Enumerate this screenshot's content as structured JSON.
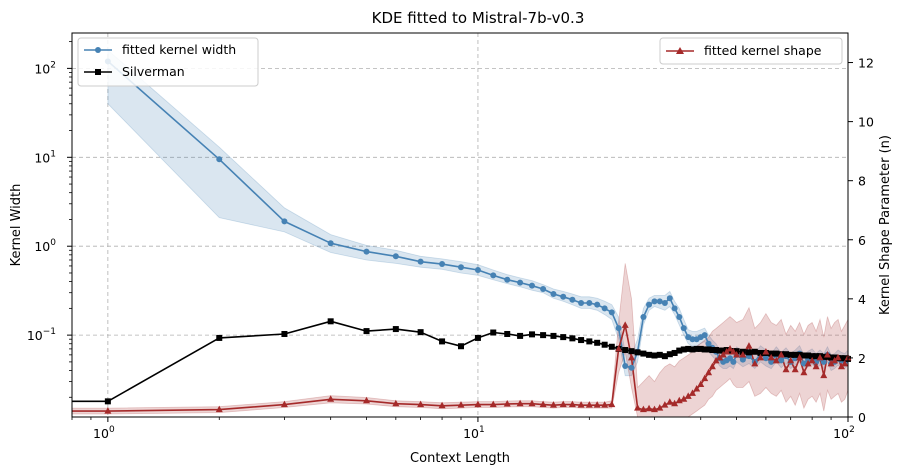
{
  "chart_data": {
    "type": "line",
    "title": "KDE fitted to Mistral-7b-v0.3",
    "xlabel": "Context Length",
    "ylabel_left": "Kernel Width",
    "ylabel_right": "Kernel Shape Parameter (n)",
    "x_scale": "log",
    "y_left_scale": "log",
    "xlim": [
      0.8,
      100
    ],
    "ylim_left": [
      0.012,
      250
    ],
    "ylim_right": [
      0,
      13
    ],
    "x_ticks": [
      {
        "value": 1,
        "base": "10",
        "exp": "0"
      },
      {
        "value": 10,
        "base": "10",
        "exp": "1"
      },
      {
        "value": 100,
        "base": "10",
        "exp": "2"
      }
    ],
    "y_left_ticks": [
      {
        "value": 0.1,
        "base": "10",
        "exp": "−1"
      },
      {
        "value": 1,
        "base": "10",
        "exp": "0"
      },
      {
        "value": 10,
        "base": "10",
        "exp": "1"
      },
      {
        "value": 100,
        "base": "10",
        "exp": "2"
      }
    ],
    "y_right_ticks": [
      "0",
      "2",
      "4",
      "6",
      "8",
      "10",
      "12"
    ],
    "grid": true,
    "legend_left": [
      "fitted kernel width",
      "Silverman"
    ],
    "legend_right": [
      "fitted kernel shape"
    ],
    "colors": {
      "width": "#4682b4",
      "silverman": "#000000",
      "shape": "#a52a2a"
    },
    "series": [
      {
        "name": "fitted kernel width",
        "axis": "left",
        "x": [
          1,
          2,
          3,
          4,
          5,
          6,
          7,
          8,
          9,
          10,
          11,
          12,
          13,
          14,
          15,
          16,
          17,
          18,
          19,
          20,
          21,
          22,
          23,
          24,
          25,
          26,
          27,
          28,
          29,
          30,
          31,
          32,
          33,
          34,
          35,
          36,
          37,
          38,
          39,
          40,
          41,
          42,
          43,
          44,
          45,
          46,
          47,
          48,
          49,
          50,
          52,
          54,
          56,
          58,
          60,
          62,
          64,
          66,
          68,
          70,
          72,
          74,
          76,
          78,
          80,
          82,
          84,
          86,
          88,
          90,
          92,
          94,
          96,
          98,
          100
        ],
        "y": [
          120,
          9.5,
          1.9,
          1.08,
          0.87,
          0.77,
          0.67,
          0.63,
          0.58,
          0.54,
          0.47,
          0.42,
          0.39,
          0.36,
          0.33,
          0.29,
          0.27,
          0.25,
          0.23,
          0.23,
          0.22,
          0.2,
          0.18,
          0.12,
          0.045,
          0.043,
          0.065,
          0.16,
          0.22,
          0.24,
          0.24,
          0.23,
          0.26,
          0.2,
          0.16,
          0.12,
          0.095,
          0.09,
          0.09,
          0.095,
          0.1,
          0.08,
          0.072,
          0.065,
          0.055,
          0.05,
          0.052,
          0.055,
          0.05,
          0.06,
          0.053,
          0.058,
          0.05,
          0.062,
          0.055,
          0.05,
          0.06,
          0.052,
          0.058,
          0.05,
          0.055,
          0.062,
          0.048,
          0.053,
          0.057,
          0.05,
          0.055,
          0.05,
          0.06,
          0.048,
          0.05,
          0.055,
          0.052,
          0.05,
          0.055
        ],
        "band_lower": [
          40,
          2.1,
          1.45,
          0.85,
          0.7,
          0.64,
          0.58,
          0.55,
          0.5,
          0.47,
          0.42,
          0.38,
          0.35,
          0.32,
          0.3,
          0.26,
          0.24,
          0.22,
          0.2,
          0.2,
          0.19,
          0.17,
          0.15,
          0.09,
          0.035,
          0.035,
          0.05,
          0.13,
          0.19,
          0.21,
          0.2,
          0.19,
          0.21,
          0.17,
          0.13,
          0.1,
          0.08,
          0.075,
          0.075,
          0.08,
          0.085,
          0.065,
          0.058,
          0.052,
          0.045,
          0.042,
          0.042,
          0.045,
          0.042,
          0.05,
          0.044,
          0.048,
          0.042,
          0.05,
          0.045,
          0.042,
          0.05,
          0.043,
          0.048,
          0.042,
          0.046,
          0.05,
          0.04,
          0.044,
          0.047,
          0.042,
          0.046,
          0.042,
          0.05,
          0.04,
          0.042,
          0.046,
          0.043,
          0.042,
          0.046
        ],
        "band_upper": [
          160,
          13,
          2.7,
          1.35,
          1.02,
          0.9,
          0.77,
          0.72,
          0.67,
          0.62,
          0.54,
          0.48,
          0.44,
          0.41,
          0.37,
          0.33,
          0.31,
          0.29,
          0.27,
          0.27,
          0.26,
          0.24,
          0.22,
          0.16,
          0.065,
          0.06,
          0.09,
          0.2,
          0.26,
          0.28,
          0.28,
          0.28,
          0.31,
          0.24,
          0.2,
          0.15,
          0.115,
          0.11,
          0.11,
          0.115,
          0.12,
          0.1,
          0.088,
          0.08,
          0.068,
          0.062,
          0.066,
          0.068,
          0.062,
          0.074,
          0.066,
          0.072,
          0.062,
          0.076,
          0.068,
          0.062,
          0.074,
          0.064,
          0.072,
          0.062,
          0.068,
          0.076,
          0.06,
          0.066,
          0.07,
          0.062,
          0.068,
          0.062,
          0.074,
          0.06,
          0.062,
          0.068,
          0.064,
          0.062,
          0.068
        ]
      },
      {
        "name": "Silverman",
        "axis": "left",
        "x": [
          0.8,
          1,
          2,
          3,
          4,
          5,
          6,
          7,
          8,
          9,
          10,
          11,
          12,
          13,
          14,
          15,
          16,
          17,
          18,
          19,
          20,
          21,
          22,
          23,
          24,
          25,
          26,
          27,
          28,
          29,
          30,
          31,
          32,
          33,
          34,
          35,
          36,
          37,
          38,
          39,
          40,
          41,
          42,
          43,
          44,
          45,
          46,
          47,
          48,
          49,
          50,
          52,
          54,
          56,
          58,
          60,
          62,
          64,
          66,
          68,
          70,
          72,
          74,
          76,
          78,
          80,
          82,
          84,
          86,
          88,
          90,
          92,
          94,
          96,
          98,
          100
        ],
        "y": [
          0.018,
          0.018,
          0.093,
          0.103,
          0.143,
          0.111,
          0.117,
          0.108,
          0.085,
          0.075,
          0.093,
          0.107,
          0.103,
          0.098,
          0.102,
          0.1,
          0.098,
          0.095,
          0.092,
          0.088,
          0.085,
          0.082,
          0.078,
          0.074,
          0.07,
          0.068,
          0.066,
          0.064,
          0.062,
          0.06,
          0.059,
          0.06,
          0.058,
          0.061,
          0.063,
          0.067,
          0.069,
          0.07,
          0.069,
          0.07,
          0.07,
          0.069,
          0.069,
          0.068,
          0.068,
          0.067,
          0.067,
          0.068,
          0.066,
          0.066,
          0.066,
          0.065,
          0.064,
          0.065,
          0.063,
          0.063,
          0.062,
          0.062,
          0.061,
          0.061,
          0.06,
          0.06,
          0.06,
          0.059,
          0.059,
          0.058,
          0.058,
          0.058,
          0.057,
          0.057,
          0.056,
          0.056,
          0.055,
          0.055,
          0.055,
          0.054
        ]
      },
      {
        "name": "fitted kernel shape",
        "axis": "right",
        "x": [
          0.8,
          1,
          2,
          3,
          4,
          5,
          6,
          7,
          8,
          9,
          10,
          11,
          12,
          13,
          14,
          15,
          16,
          17,
          18,
          19,
          20,
          21,
          22,
          23,
          24,
          25,
          26,
          27,
          28,
          29,
          30,
          31,
          32,
          33,
          34,
          35,
          36,
          37,
          38,
          39,
          40,
          41,
          42,
          43,
          44,
          45,
          46,
          47,
          48,
          49,
          50,
          52,
          54,
          56,
          58,
          60,
          62,
          64,
          66,
          68,
          70,
          72,
          74,
          76,
          78,
          80,
          82,
          84,
          86,
          88,
          90,
          92,
          94,
          96,
          98,
          100
        ],
        "y": [
          0.2,
          0.2,
          0.25,
          0.42,
          0.6,
          0.55,
          0.45,
          0.42,
          0.38,
          0.4,
          0.42,
          0.42,
          0.44,
          0.45,
          0.45,
          0.42,
          0.4,
          0.42,
          0.42,
          0.4,
          0.4,
          0.4,
          0.4,
          0.42,
          2.3,
          3.1,
          2.0,
          0.3,
          0.25,
          0.28,
          0.25,
          0.3,
          0.4,
          0.5,
          0.45,
          0.55,
          0.6,
          0.7,
          0.8,
          0.95,
          1.1,
          1.3,
          1.5,
          1.7,
          1.9,
          2.0,
          2.1,
          2.2,
          2.3,
          2.2,
          2.1,
          2.1,
          2.4,
          1.8,
          2.0,
          2.2,
          2.0,
          1.9,
          2.1,
          1.6,
          1.9,
          1.6,
          2.0,
          1.5,
          1.8,
          1.9,
          1.7,
          2.0,
          1.4,
          2.1,
          1.8,
          1.9,
          2.0,
          1.7,
          1.8,
          2.0
        ],
        "band_lower": [
          0.1,
          0.1,
          0.15,
          0.32,
          0.48,
          0.44,
          0.35,
          0.32,
          0.28,
          0.3,
          0.32,
          0.32,
          0.34,
          0.35,
          0.35,
          0.32,
          0.3,
          0.32,
          0.32,
          0.3,
          0.3,
          0.3,
          0.3,
          0.3,
          1.5,
          2.2,
          1.0,
          0.0,
          0.0,
          0.0,
          0.0,
          0.0,
          0.0,
          0.0,
          0.0,
          0.0,
          0.0,
          0.0,
          0.1,
          0.2,
          0.3,
          0.4,
          0.6,
          0.7,
          0.9,
          1.0,
          1.1,
          1.2,
          1.3,
          1.1,
          1.0,
          1.0,
          1.2,
          0.7,
          0.8,
          1.0,
          0.8,
          0.7,
          0.9,
          0.5,
          0.7,
          0.4,
          0.8,
          0.3,
          0.6,
          0.7,
          0.5,
          0.8,
          0.2,
          0.9,
          0.6,
          0.7,
          0.8,
          0.5,
          0.6,
          0.9
        ],
        "band_upper": [
          0.3,
          0.3,
          0.35,
          0.52,
          0.72,
          0.66,
          0.55,
          0.52,
          0.48,
          0.5,
          0.52,
          0.52,
          0.54,
          0.55,
          0.55,
          0.52,
          0.5,
          0.52,
          0.52,
          0.5,
          0.5,
          0.5,
          0.5,
          0.55,
          3.2,
          5.2,
          4.0,
          1.0,
          1.2,
          1.4,
          1.2,
          1.5,
          1.7,
          1.8,
          1.7,
          1.9,
          2.0,
          2.1,
          2.2,
          2.4,
          2.5,
          2.6,
          2.7,
          2.9,
          3.0,
          3.1,
          3.2,
          3.3,
          3.4,
          3.3,
          3.2,
          3.3,
          3.7,
          3.0,
          3.2,
          3.5,
          3.2,
          3.1,
          3.3,
          2.8,
          3.1,
          2.9,
          3.2,
          2.8,
          3.1,
          3.2,
          2.9,
          3.3,
          2.7,
          3.4,
          3.0,
          3.2,
          3.3,
          2.9,
          3.1,
          3.3
        ]
      }
    ]
  }
}
